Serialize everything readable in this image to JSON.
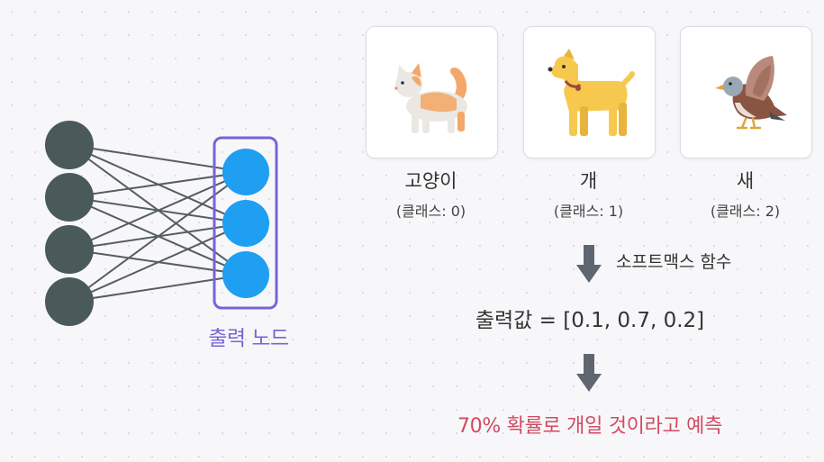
{
  "network": {
    "input_node_count": 4,
    "output_node_count": 3,
    "output_label": "출력 노드",
    "colors": {
      "input_node": "#4a5a5a",
      "output_node": "#1e9ff2",
      "edge": "#555d64",
      "highlight_box": "#7a63d6"
    }
  },
  "classes": [
    {
      "name": "고양이",
      "index_label": "(클래스: 0)",
      "icon": "cat-illustration"
    },
    {
      "name": "개",
      "index_label": "(클래스: 1)",
      "icon": "dog-illustration"
    },
    {
      "name": "새",
      "index_label": "(클래스: 2)",
      "icon": "bird-illustration"
    }
  ],
  "softmax_label": "소프트맥스 함수",
  "output_values": "출력값 = [0.1, 0.7, 0.2]",
  "prediction": "70% 확률로 개일 것이라고 예측",
  "colors": {
    "arrow": "#5f6670",
    "prediction_text": "#d24a63"
  }
}
